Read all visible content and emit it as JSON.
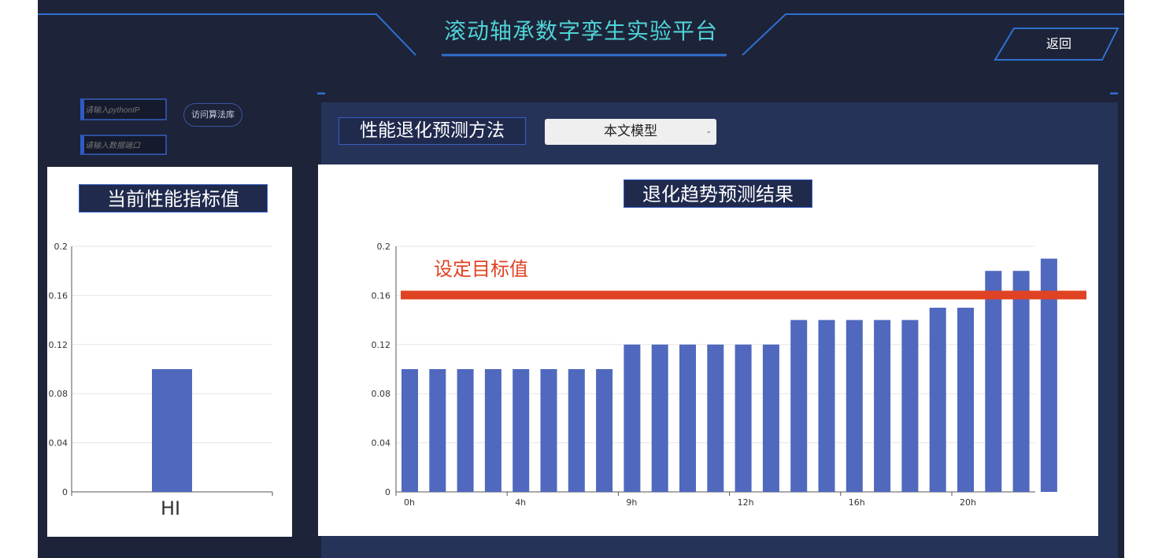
{
  "header": {
    "title": "滚动轴承数字孪生实验平台",
    "back_label": "返回"
  },
  "connection": {
    "python_ip_placeholder": "请输入pythonIP",
    "port_placeholder": "请输入数据端口",
    "visit_label": "访问算法库"
  },
  "left_panel": {
    "title": "当前性能指标值"
  },
  "method": {
    "label": "性能退化预测方法",
    "selected": "本文模型"
  },
  "right_panel": {
    "title": "退化趋势预测结果"
  },
  "colors": {
    "bar": "#5068bd",
    "threshold": "#e04323",
    "accent": "#4fd3d6"
  },
  "chart_data": [
    {
      "type": "bar",
      "categories": [
        "HI"
      ],
      "values": [
        0.1
      ],
      "ylim": [
        0,
        0.2
      ],
      "yticks": [
        "0",
        "0.04",
        "0.08",
        "0.12",
        "0.16",
        "0.2"
      ],
      "grid": true
    },
    {
      "type": "bar",
      "x_tick_labels": [
        "0h",
        "4h",
        "9h",
        "12h",
        "16h",
        "20h"
      ],
      "values": [
        0.1,
        0.1,
        0.1,
        0.1,
        0.1,
        0.1,
        0.1,
        0.1,
        0.12,
        0.12,
        0.12,
        0.12,
        0.12,
        0.12,
        0.14,
        0.14,
        0.14,
        0.14,
        0.14,
        0.15,
        0.15,
        0.18,
        0.18,
        0.19
      ],
      "ylim": [
        0,
        0.2
      ],
      "yticks": [
        "0",
        "0.04",
        "0.08",
        "0.12",
        "0.16",
        "0.2"
      ],
      "grid": true,
      "threshold": {
        "value": 0.16,
        "label": "设定目标值"
      }
    }
  ]
}
